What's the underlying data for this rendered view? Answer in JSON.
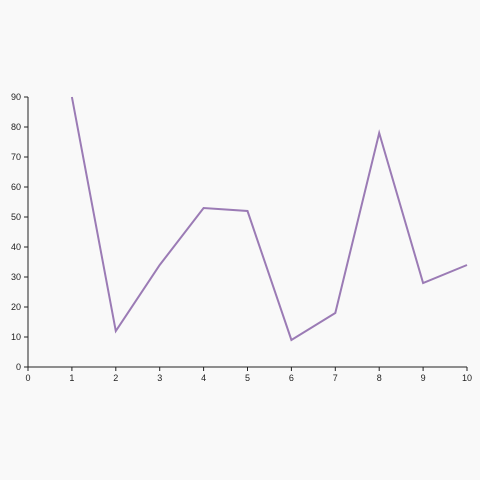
{
  "chart_data": {
    "type": "line",
    "x": [
      1,
      2,
      3,
      4,
      5,
      6,
      7,
      8,
      9,
      10
    ],
    "series": [
      {
        "values": [
          90,
          12,
          34,
          53,
          52,
          9,
          18,
          78,
          28,
          34
        ],
        "color": "#9b7bb5"
      }
    ],
    "title": "",
    "xlabel": "",
    "ylabel": "",
    "xlim": [
      0,
      10
    ],
    "ylim": [
      0,
      90
    ],
    "xticks": [
      0,
      1,
      2,
      3,
      4,
      5,
      6,
      7,
      8,
      9,
      10
    ],
    "yticks": [
      0,
      10,
      20,
      30,
      40,
      50,
      60,
      70,
      80,
      90
    ],
    "grid": false,
    "legend": "none",
    "axis_color": "#222222"
  }
}
